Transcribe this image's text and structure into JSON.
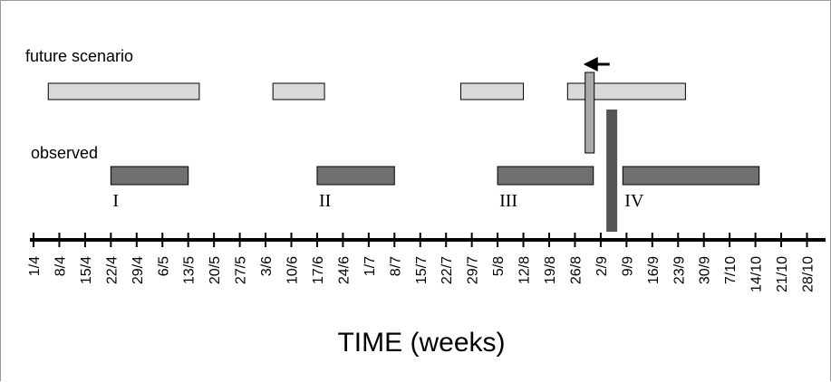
{
  "labels": {
    "future": "future scenario",
    "observed": "observed",
    "axis_title": "TIME (weeks)"
  },
  "colors": {
    "future_fill": "#d9d9d9",
    "observed_fill": "#707070",
    "marker_fill": "#555555",
    "axis": "#000000"
  },
  "ticks": [
    "1/4",
    "8/4",
    "15/4",
    "22/4",
    "29/4",
    "6/5",
    "13/5",
    "20/5",
    "27/5",
    "3/6",
    "10/6",
    "17/6",
    "24/6",
    "1/7",
    "8/7",
    "15/7",
    "22/7",
    "29/7",
    "5/8",
    "12/8",
    "19/8",
    "26/8",
    "2/9",
    "9/9",
    "16/9",
    "23/9",
    "30/9",
    "7/10",
    "14/10",
    "21/10",
    "28/10"
  ],
  "future_periods": [
    {
      "start": "5/4",
      "end": "16/5"
    },
    {
      "start": "5/6",
      "end": "19/6"
    },
    {
      "start": "26/7",
      "end": "12/8"
    },
    {
      "start": "24/8",
      "end": "25/9"
    }
  ],
  "observed_periods": [
    {
      "label": "I",
      "start": "22/4",
      "end": "13/5"
    },
    {
      "label": "II",
      "start": "17/6",
      "end": "8/7"
    },
    {
      "label": "III",
      "start": "5/8",
      "end": "31/8"
    },
    {
      "label": "IV",
      "start": "8/9",
      "end": "15/10"
    }
  ],
  "future_marker": {
    "date": "30/8",
    "arrow": "left-arrow-icon"
  },
  "observed_marker": {
    "date": "5/9"
  }
}
